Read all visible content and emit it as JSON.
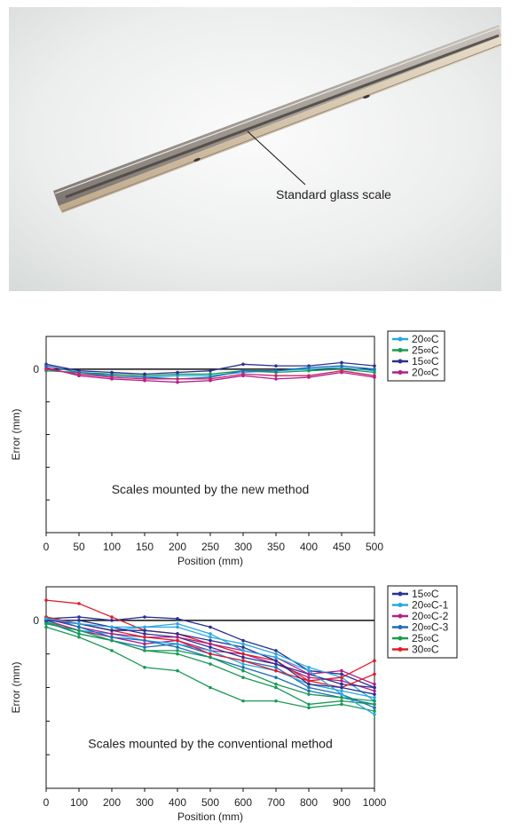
{
  "photo": {
    "callout_label": "Standard glass scale"
  },
  "chart_data": [
    {
      "type": "line",
      "ylabel": "Error  (mm)",
      "xlabel": "Position (mm)",
      "x_ticks": [
        "0",
        "50",
        "100",
        "150",
        "200",
        "250",
        "300",
        "350",
        "400",
        "450",
        "500"
      ],
      "y_tick_labels": [
        "0"
      ],
      "xlim": [
        0,
        500
      ],
      "ylim": [
        -5,
        1
      ],
      "annotation": "Scales mounted by the new method",
      "legend_position": "top-right, outside plot",
      "x": [
        0,
        50,
        100,
        150,
        200,
        250,
        300,
        350,
        400,
        450,
        500
      ],
      "series": [
        {
          "name": "20∞C",
          "color": "#29a8e0",
          "values": [
            0.0,
            -0.15,
            -0.2,
            -0.25,
            -0.2,
            -0.2,
            -0.1,
            -0.05,
            0.0,
            0.05,
            -0.05
          ]
        },
        {
          "name": "25∞C",
          "color": "#1a9a55",
          "values": [
            -0.05,
            -0.1,
            -0.15,
            -0.2,
            -0.15,
            -0.15,
            -0.05,
            -0.1,
            -0.05,
            0.0,
            -0.1
          ]
        },
        {
          "name": "15∞C",
          "color": "#2b3191",
          "values": [
            0.15,
            -0.05,
            -0.1,
            -0.15,
            -0.1,
            -0.05,
            0.15,
            0.1,
            0.1,
            0.2,
            0.1
          ]
        },
        {
          "name": "20∞C",
          "color": "#b0208a",
          "values": [
            0.05,
            -0.2,
            -0.3,
            -0.35,
            -0.4,
            -0.35,
            -0.2,
            -0.3,
            -0.25,
            -0.1,
            -0.25
          ]
        },
        {
          "name": "",
          "color": "#1a6fb5",
          "values": [
            0.1,
            -0.1,
            -0.2,
            -0.25,
            -0.3,
            -0.25,
            -0.05,
            -0.05,
            0.05,
            0.1,
            0.0
          ]
        },
        {
          "name": "",
          "color": "#d0206a",
          "values": [
            0.0,
            -0.15,
            -0.25,
            -0.3,
            -0.3,
            -0.3,
            -0.15,
            -0.2,
            -0.2,
            -0.05,
            -0.2
          ]
        }
      ]
    },
    {
      "type": "line",
      "ylabel": "Error  (mm)",
      "xlabel": "Position (mm)",
      "x_ticks": [
        "0",
        "100",
        "200",
        "300",
        "400",
        "500",
        "600",
        "700",
        "800",
        "900",
        "1000"
      ],
      "y_tick_labels": [
        "0"
      ],
      "xlim": [
        0,
        1000
      ],
      "ylim": [
        -5,
        1
      ],
      "annotation": "Scales mounted by the conventional method",
      "legend_position": "top-right, outside plot",
      "x": [
        0,
        100,
        200,
        300,
        400,
        500,
        600,
        700,
        800,
        900,
        1000
      ],
      "series": [
        {
          "name": "15∞C",
          "color": "#2b3191",
          "values": [
            0.05,
            0.1,
            0.0,
            0.1,
            0.05,
            -0.2,
            -0.6,
            -0.9,
            -1.5,
            -1.6,
            -2.0
          ]
        },
        {
          "name": "20∞C-1",
          "color": "#29a8e0",
          "values": [
            0.1,
            -0.1,
            -0.3,
            -0.2,
            -0.2,
            -0.5,
            -0.7,
            -1.0,
            -1.4,
            -1.7,
            -2.4
          ]
        },
        {
          "name": "20∞C-2",
          "color": "#b0208a",
          "values": [
            0.0,
            -0.3,
            -0.5,
            -0.7,
            -0.6,
            -0.9,
            -1.0,
            -1.3,
            -1.7,
            -1.8,
            -2.1
          ]
        },
        {
          "name": "20∞C-3",
          "color": "#1a6fb5",
          "values": [
            -0.05,
            -0.4,
            -0.6,
            -0.8,
            -0.7,
            -1.0,
            -1.2,
            -1.4,
            -2.0,
            -2.2,
            -2.6
          ]
        },
        {
          "name": "25∞C",
          "color": "#1a9a55",
          "values": [
            -0.2,
            -0.5,
            -0.9,
            -1.4,
            -1.5,
            -2.0,
            -2.4,
            -2.4,
            -2.6,
            -2.5,
            -2.7
          ]
        },
        {
          "name": "30∞C",
          "color": "#e01d2a",
          "values": [
            0.6,
            0.5,
            0.1,
            -0.3,
            -0.4,
            -0.7,
            -1.0,
            -1.2,
            -1.8,
            -1.7,
            -1.2
          ]
        },
        {
          "name": "",
          "color": "#2b3191",
          "values": [
            0.0,
            0.0,
            -0.2,
            -0.4,
            -0.5,
            -0.8,
            -1.1,
            -1.3,
            -1.6,
            -1.9,
            -2.0
          ]
        },
        {
          "name": "",
          "color": "#29a8e0",
          "values": [
            -0.1,
            -0.3,
            -0.4,
            -0.6,
            -0.7,
            -0.9,
            -1.3,
            -1.5,
            -1.9,
            -2.1,
            -2.3
          ]
        },
        {
          "name": "",
          "color": "#b0208a",
          "values": [
            0.05,
            -0.2,
            -0.4,
            -0.5,
            -0.5,
            -0.7,
            -0.9,
            -1.1,
            -1.6,
            -1.5,
            -1.9
          ]
        },
        {
          "name": "",
          "color": "#1a6fb5",
          "values": [
            0.1,
            -0.2,
            -0.5,
            -0.6,
            -0.8,
            -1.1,
            -1.4,
            -1.7,
            -2.1,
            -2.3,
            -2.5
          ]
        },
        {
          "name": "",
          "color": "#1a9a55",
          "values": [
            0.0,
            -0.4,
            -0.6,
            -0.9,
            -1.0,
            -1.3,
            -1.7,
            -2.0,
            -2.5,
            -2.4,
            -2.5
          ]
        },
        {
          "name": "",
          "color": "#e01d2a",
          "values": [
            0.1,
            -0.1,
            -0.3,
            -0.5,
            -0.6,
            -1.0,
            -1.2,
            -1.5,
            -1.8,
            -2.0,
            -1.6
          ]
        },
        {
          "name": "",
          "color": "#2b3191",
          "values": [
            0.0,
            -0.1,
            -0.3,
            -0.3,
            -0.4,
            -0.6,
            -0.8,
            -1.2,
            -1.9,
            -2.0,
            -2.2
          ]
        },
        {
          "name": "",
          "color": "#29a8e0",
          "values": [
            0.05,
            -0.1,
            -0.2,
            -0.2,
            -0.1,
            -0.4,
            -0.9,
            -1.1,
            -1.5,
            -2.2,
            -2.8
          ]
        },
        {
          "name": "",
          "color": "#1a9a55",
          "values": [
            -0.1,
            -0.3,
            -0.6,
            -0.9,
            -0.9,
            -1.1,
            -1.5,
            -1.9,
            -2.2,
            -2.3,
            -2.4
          ]
        }
      ]
    }
  ]
}
